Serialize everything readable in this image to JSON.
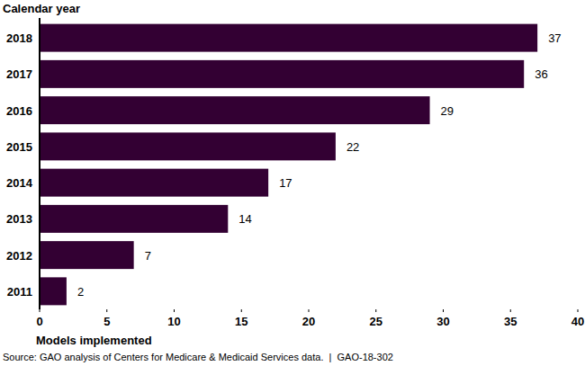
{
  "chart_data": {
    "type": "bar",
    "orientation": "horizontal",
    "y_label": "Calendar year",
    "x_label": "Models implemented",
    "source": "Source: GAO analysis of Centers for Medicare & Medicaid Services data.  |  GAO-18-302",
    "categories": [
      "2018",
      "2017",
      "2016",
      "2015",
      "2014",
      "2013",
      "2012",
      "2011"
    ],
    "values": [
      37,
      36,
      29,
      22,
      17,
      14,
      7,
      2
    ],
    "color": "#330033",
    "xlim": [
      0,
      40
    ],
    "xticks": [
      0,
      5,
      10,
      15,
      20,
      25,
      30,
      35,
      40
    ],
    "grid": false,
    "data_labels": true
  }
}
